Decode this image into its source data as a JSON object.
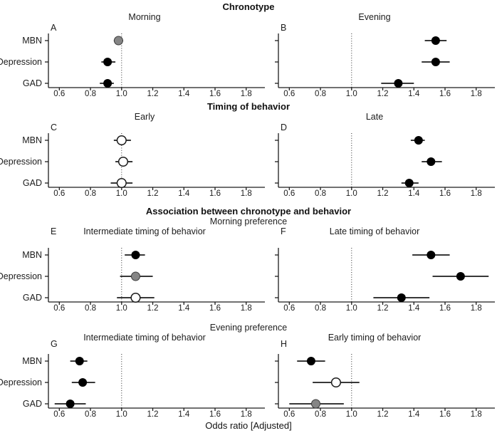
{
  "figure": {
    "xlabel": "Odds ratio [Adjusted]",
    "categories": [
      "MBN",
      "Depression",
      "GAD"
    ],
    "x_ticks": [
      "0.6",
      "0.8",
      "1.0",
      "1.2",
      "1.4",
      "1.6",
      "1.8"
    ],
    "xlim": [
      0.53,
      1.92
    ],
    "ref_line": 1.0,
    "grid": "off",
    "colors": {
      "marker_black": "#000000",
      "marker_gray": "#858585",
      "marker_white": "#ffffff",
      "axis": "#1c1c1c",
      "background": "#ffffff"
    }
  },
  "sections": [
    {
      "header": "Chronotype",
      "subheader": "",
      "panels": [
        "A",
        "B"
      ]
    },
    {
      "header": "Timing of behavior",
      "subheader": "",
      "panels": [
        "C",
        "D"
      ]
    },
    {
      "header": "Association between chronotype and behavior",
      "subheader": "Morning preference",
      "panels": [
        "E",
        "F"
      ]
    },
    {
      "header": "",
      "subheader": "Evening preference",
      "panels": [
        "G",
        "H"
      ]
    }
  ],
  "chart_data": [
    {
      "type": "scatter",
      "panel": "A",
      "title": "Morning",
      "section": "Chronotype",
      "points": [
        {
          "category": "MBN",
          "odds_ratio": 0.98,
          "ci_low": 0.95,
          "ci_high": 1.01,
          "marker": "gray"
        },
        {
          "category": "Depression",
          "odds_ratio": 0.91,
          "ci_low": 0.87,
          "ci_high": 0.96,
          "marker": "black"
        },
        {
          "category": "GAD",
          "odds_ratio": 0.91,
          "ci_low": 0.86,
          "ci_high": 0.95,
          "marker": "black"
        }
      ]
    },
    {
      "type": "scatter",
      "panel": "B",
      "title": "Evening",
      "section": "Chronotype",
      "points": [
        {
          "category": "MBN",
          "odds_ratio": 1.54,
          "ci_low": 1.47,
          "ci_high": 1.61,
          "marker": "black"
        },
        {
          "category": "Depression",
          "odds_ratio": 1.54,
          "ci_low": 1.45,
          "ci_high": 1.63,
          "marker": "black"
        },
        {
          "category": "GAD",
          "odds_ratio": 1.3,
          "ci_low": 1.19,
          "ci_high": 1.4,
          "marker": "black"
        }
      ]
    },
    {
      "type": "scatter",
      "panel": "C",
      "title": "Early",
      "section": "Timing of behavior",
      "points": [
        {
          "category": "MBN",
          "odds_ratio": 1.0,
          "ci_low": 0.95,
          "ci_high": 1.06,
          "marker": "white"
        },
        {
          "category": "Depression",
          "odds_ratio": 1.01,
          "ci_low": 0.96,
          "ci_high": 1.07,
          "marker": "white"
        },
        {
          "category": "GAD",
          "odds_ratio": 1.0,
          "ci_low": 0.93,
          "ci_high": 1.07,
          "marker": "white"
        }
      ]
    },
    {
      "type": "scatter",
      "panel": "D",
      "title": "Late",
      "section": "Timing of behavior",
      "points": [
        {
          "category": "MBN",
          "odds_ratio": 1.43,
          "ci_low": 1.38,
          "ci_high": 1.47,
          "marker": "black"
        },
        {
          "category": "Depression",
          "odds_ratio": 1.51,
          "ci_low": 1.45,
          "ci_high": 1.58,
          "marker": "black"
        },
        {
          "category": "GAD",
          "odds_ratio": 1.37,
          "ci_low": 1.32,
          "ci_high": 1.43,
          "marker": "black"
        }
      ]
    },
    {
      "type": "scatter",
      "panel": "E",
      "title": "Intermediate timing of behavior",
      "section": "Morning preference",
      "points": [
        {
          "category": "MBN",
          "odds_ratio": 1.09,
          "ci_low": 1.02,
          "ci_high": 1.15,
          "marker": "black"
        },
        {
          "category": "Depression",
          "odds_ratio": 1.09,
          "ci_low": 0.99,
          "ci_high": 1.2,
          "marker": "gray"
        },
        {
          "category": "GAD",
          "odds_ratio": 1.09,
          "ci_low": 0.97,
          "ci_high": 1.21,
          "marker": "white"
        }
      ]
    },
    {
      "type": "scatter",
      "panel": "F",
      "title": "Late timing of behavior",
      "section": "Morning preference",
      "points": [
        {
          "category": "MBN",
          "odds_ratio": 1.51,
          "ci_low": 1.39,
          "ci_high": 1.63,
          "marker": "black"
        },
        {
          "category": "Depression",
          "odds_ratio": 1.7,
          "ci_low": 1.52,
          "ci_high": 1.88,
          "marker": "black"
        },
        {
          "category": "GAD",
          "odds_ratio": 1.32,
          "ci_low": 1.14,
          "ci_high": 1.5,
          "marker": "black"
        }
      ]
    },
    {
      "type": "scatter",
      "panel": "G",
      "title": "Intermediate timing of behavior",
      "section": "Evening preference",
      "points": [
        {
          "category": "MBN",
          "odds_ratio": 0.73,
          "ci_low": 0.67,
          "ci_high": 0.78,
          "marker": "black"
        },
        {
          "category": "Depression",
          "odds_ratio": 0.75,
          "ci_low": 0.68,
          "ci_high": 0.83,
          "marker": "black"
        },
        {
          "category": "GAD",
          "odds_ratio": 0.67,
          "ci_low": 0.57,
          "ci_high": 0.77,
          "marker": "black"
        }
      ]
    },
    {
      "type": "scatter",
      "panel": "H",
      "title": "Early timing of behavior",
      "section": "Evening preference",
      "points": [
        {
          "category": "MBN",
          "odds_ratio": 0.74,
          "ci_low": 0.65,
          "ci_high": 0.83,
          "marker": "black"
        },
        {
          "category": "Depression",
          "odds_ratio": 0.9,
          "ci_low": 0.75,
          "ci_high": 1.05,
          "marker": "white"
        },
        {
          "category": "GAD",
          "odds_ratio": 0.77,
          "ci_low": 0.6,
          "ci_high": 0.95,
          "marker": "gray"
        }
      ]
    }
  ]
}
